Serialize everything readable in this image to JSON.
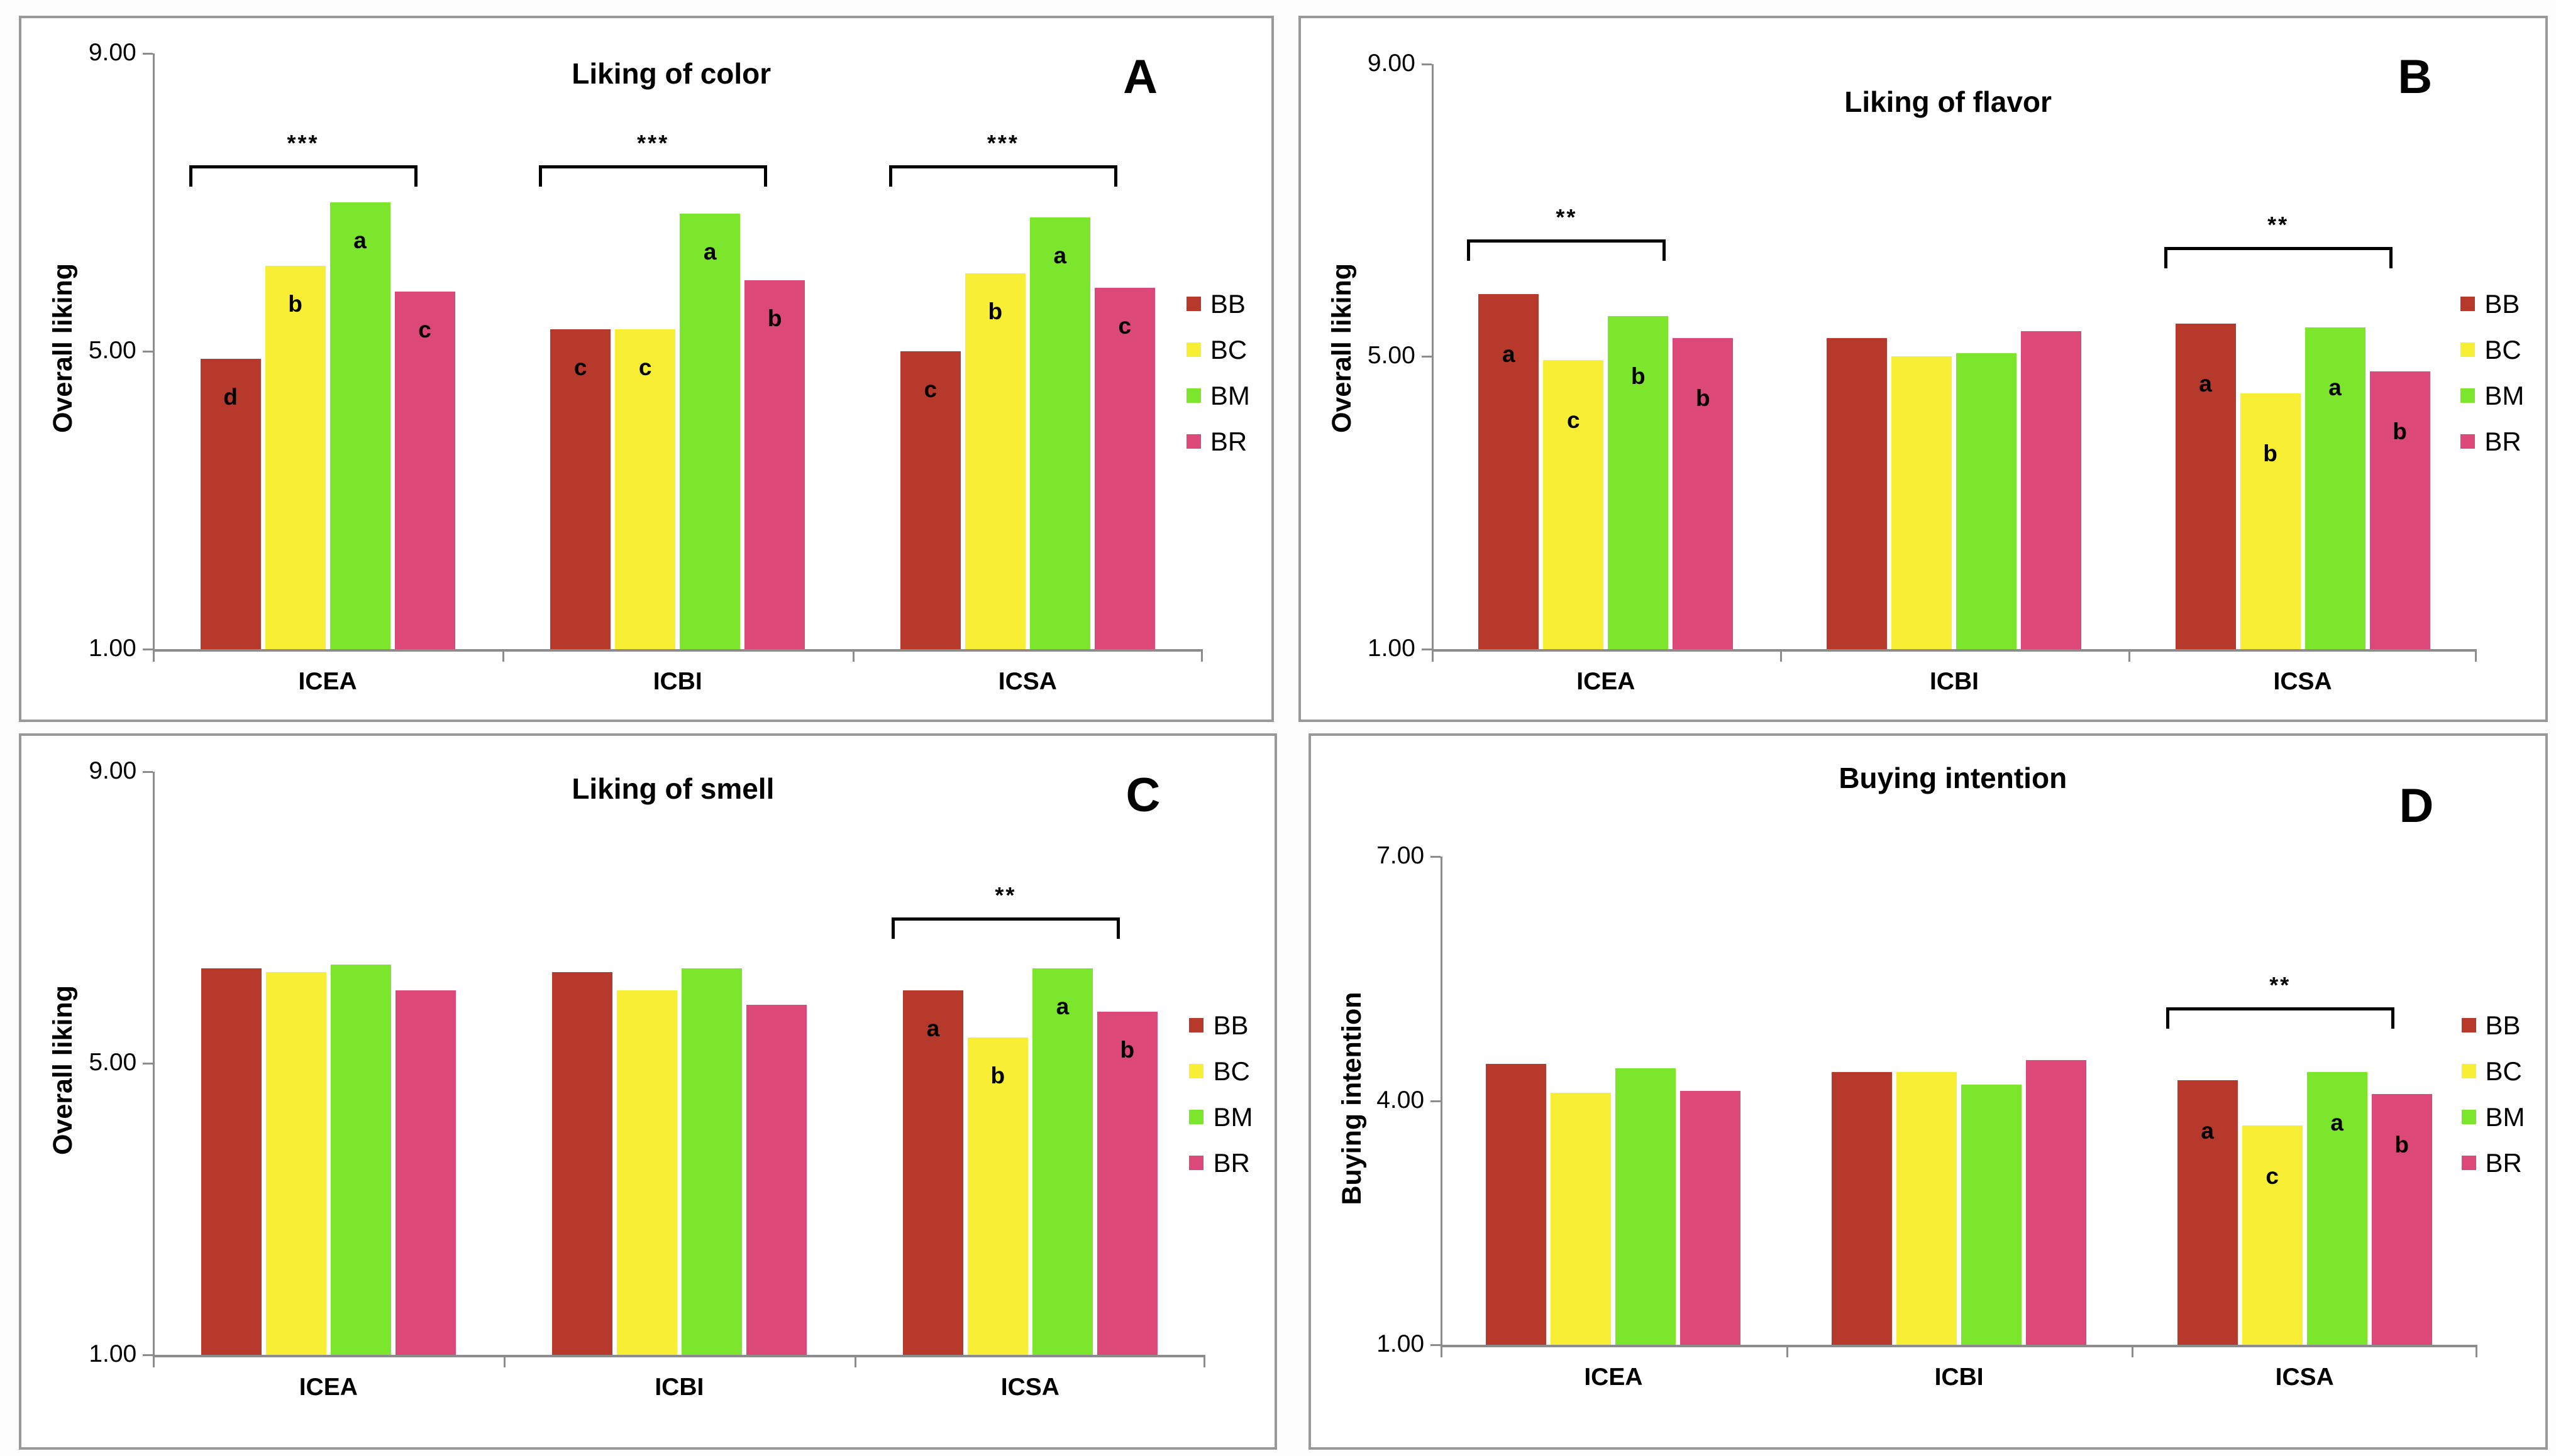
{
  "colors": {
    "BB": "#B6392B",
    "BC": "#F8EE33",
    "BM": "#7BE62C",
    "BR": "#DC4878",
    "axis": "#8C8C8C",
    "panel_border": "#999999",
    "bracket": "#000000",
    "text": "#000000"
  },
  "legend": {
    "items": [
      {
        "label": "BB"
      },
      {
        "label": "BC"
      },
      {
        "label": "BM"
      },
      {
        "label": "BR"
      }
    ]
  },
  "chart_data": [
    {
      "id": "A",
      "type": "bar",
      "corner_label": "A",
      "title": "Liking of color",
      "ylabel": "Overall liking",
      "ylim": [
        1,
        9
      ],
      "yticks": [
        "9.00",
        "5.00",
        "1.00"
      ],
      "grid": false,
      "legend_position": "right",
      "categories": [
        "ICEA",
        "ICBI",
        "ICSA"
      ],
      "series": [
        {
          "name": "BB",
          "color": "#B6392B",
          "values": [
            4.9,
            5.3,
            5.0
          ]
        },
        {
          "name": "BC",
          "color": "#F8EE33",
          "values": [
            6.15,
            5.3,
            6.05
          ]
        },
        {
          "name": "BM",
          "color": "#7BE62C",
          "values": [
            7.0,
            6.85,
            6.8
          ]
        },
        {
          "name": "BR",
          "color": "#DC4878",
          "values": [
            5.8,
            5.95,
            5.85
          ]
        }
      ],
      "sig_letters": [
        [
          "d",
          "b",
          "a",
          "c"
        ],
        [
          "c",
          "c",
          "a",
          "b"
        ],
        [
          "c",
          "b",
          "a",
          "c"
        ]
      ],
      "brackets": [
        {
          "group": 0,
          "label": "***",
          "y": 7.5,
          "from_series": 0,
          "to_series": 3
        },
        {
          "group": 1,
          "label": "***",
          "y": 7.5,
          "from_series": 0,
          "to_series": 3
        },
        {
          "group": 2,
          "label": "***",
          "y": 7.5,
          "from_series": 0,
          "to_series": 3
        }
      ]
    },
    {
      "id": "B",
      "type": "bar",
      "corner_label": "B",
      "title": "Liking of flavor",
      "ylabel": "Overall liking",
      "ylim": [
        1,
        9
      ],
      "yticks": [
        "9.00",
        "5.00",
        "1.00"
      ],
      "grid": false,
      "legend_position": "right",
      "categories": [
        "ICEA",
        "ICBI",
        "ICSA"
      ],
      "series": [
        {
          "name": "BB",
          "color": "#B6392B",
          "values": [
            5.85,
            5.25,
            5.45
          ]
        },
        {
          "name": "BC",
          "color": "#F8EE33",
          "values": [
            4.95,
            5.0,
            4.5
          ]
        },
        {
          "name": "BM",
          "color": "#7BE62C",
          "values": [
            5.55,
            5.05,
            5.4
          ]
        },
        {
          "name": "BR",
          "color": "#DC4878",
          "values": [
            5.25,
            5.35,
            4.8
          ]
        }
      ],
      "sig_letters": [
        [
          "a",
          "c",
          "b",
          "b"
        ],
        [
          "",
          "",
          "",
          ""
        ],
        [
          "a",
          "b",
          "a",
          "b"
        ]
      ],
      "brackets": [
        {
          "group": 0,
          "label": "**",
          "y": 6.6,
          "from_series": 0,
          "to_series": 2
        },
        {
          "group": 2,
          "label": "**",
          "y": 6.5,
          "from_series": 0,
          "to_series": 3
        }
      ]
    },
    {
      "id": "C",
      "type": "bar",
      "corner_label": "C",
      "title": "Liking of smell",
      "ylabel": "Overall liking",
      "ylim": [
        1,
        9
      ],
      "yticks": [
        "9.00",
        "5.00",
        "1.00"
      ],
      "grid": false,
      "legend_position": "right",
      "categories": [
        "ICEA",
        "ICBI",
        "ICSA"
      ],
      "series": [
        {
          "name": "BB",
          "color": "#B6392B",
          "values": [
            6.3,
            6.25,
            6.0
          ]
        },
        {
          "name": "BC",
          "color": "#F8EE33",
          "values": [
            6.25,
            6.0,
            5.35
          ]
        },
        {
          "name": "BM",
          "color": "#7BE62C",
          "values": [
            6.35,
            6.3,
            6.3
          ]
        },
        {
          "name": "BR",
          "color": "#DC4878",
          "values": [
            6.0,
            5.8,
            5.7
          ]
        }
      ],
      "sig_letters": [
        [
          "",
          "",
          "",
          ""
        ],
        [
          "",
          "",
          "",
          ""
        ],
        [
          "a",
          "b",
          "a",
          "b"
        ]
      ],
      "brackets": [
        {
          "group": 2,
          "label": "**",
          "y": 7.0,
          "from_series": 0,
          "to_series": 3
        }
      ]
    },
    {
      "id": "D",
      "type": "bar",
      "corner_label": "D",
      "title": "Buying intention",
      "ylabel": "Buying intention",
      "ylim": [
        1,
        7
      ],
      "yticks": [
        "7.00",
        "4.00",
        "1.00"
      ],
      "grid": false,
      "legend_position": "right",
      "categories": [
        "ICEA",
        "ICBI",
        "ICSA"
      ],
      "series": [
        {
          "name": "BB",
          "color": "#B6392B",
          "values": [
            4.45,
            4.35,
            4.25
          ]
        },
        {
          "name": "BC",
          "color": "#F8EE33",
          "values": [
            4.1,
            4.35,
            3.7
          ]
        },
        {
          "name": "BM",
          "color": "#7BE62C",
          "values": [
            4.4,
            4.2,
            4.35
          ]
        },
        {
          "name": "BR",
          "color": "#DC4878",
          "values": [
            4.12,
            4.5,
            4.08
          ]
        }
      ],
      "sig_letters": [
        [
          "",
          "",
          "",
          ""
        ],
        [
          "",
          "",
          "",
          ""
        ],
        [
          "a",
          "c",
          "a",
          "b"
        ]
      ],
      "brackets": [
        {
          "group": 2,
          "label": "**",
          "y": 5.15,
          "from_series": 0,
          "to_series": 3
        }
      ]
    }
  ]
}
